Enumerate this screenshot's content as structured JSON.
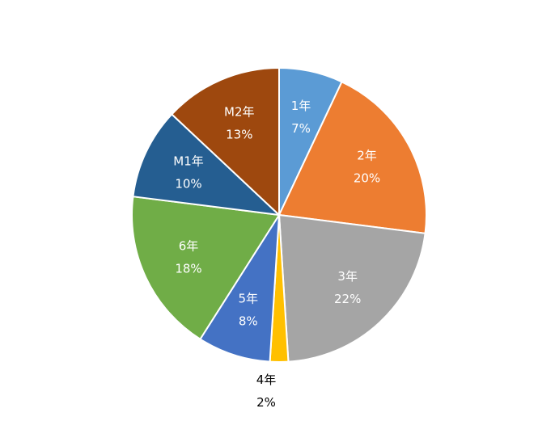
{
  "chart_data": {
    "type": "pie",
    "start_angle_deg": 0,
    "direction": "clockwise",
    "slices": [
      {
        "label": "1年",
        "value": 7,
        "percent_label": "7%",
        "color": "#5b9bd5",
        "label_color": "#ffffff",
        "label_position": "inside"
      },
      {
        "label": "2年",
        "value": 20,
        "percent_label": "20%",
        "color": "#ed7d31",
        "label_color": "#ffffff",
        "label_position": "inside"
      },
      {
        "label": "3年",
        "value": 22,
        "percent_label": "22%",
        "color": "#a5a5a5",
        "label_color": "#ffffff",
        "label_position": "inside"
      },
      {
        "label": "4年",
        "value": 2,
        "percent_label": "2%",
        "color": "#ffc000",
        "label_color": "#000000",
        "label_position": "outside"
      },
      {
        "label": "5年",
        "value": 8,
        "percent_label": "8%",
        "color": "#4472c4",
        "label_color": "#ffffff",
        "label_position": "inside"
      },
      {
        "label": "6年",
        "value": 18,
        "percent_label": "18%",
        "color": "#70ad47",
        "label_color": "#ffffff",
        "label_position": "inside"
      },
      {
        "label": "M1年",
        "value": 10,
        "percent_label": "10%",
        "color": "#255e91",
        "label_color": "#ffffff",
        "label_position": "inside"
      },
      {
        "label": "M2年",
        "value": 13,
        "percent_label": "13%",
        "color": "#9e480e",
        "label_color": "#ffffff",
        "label_position": "inside"
      }
    ]
  }
}
